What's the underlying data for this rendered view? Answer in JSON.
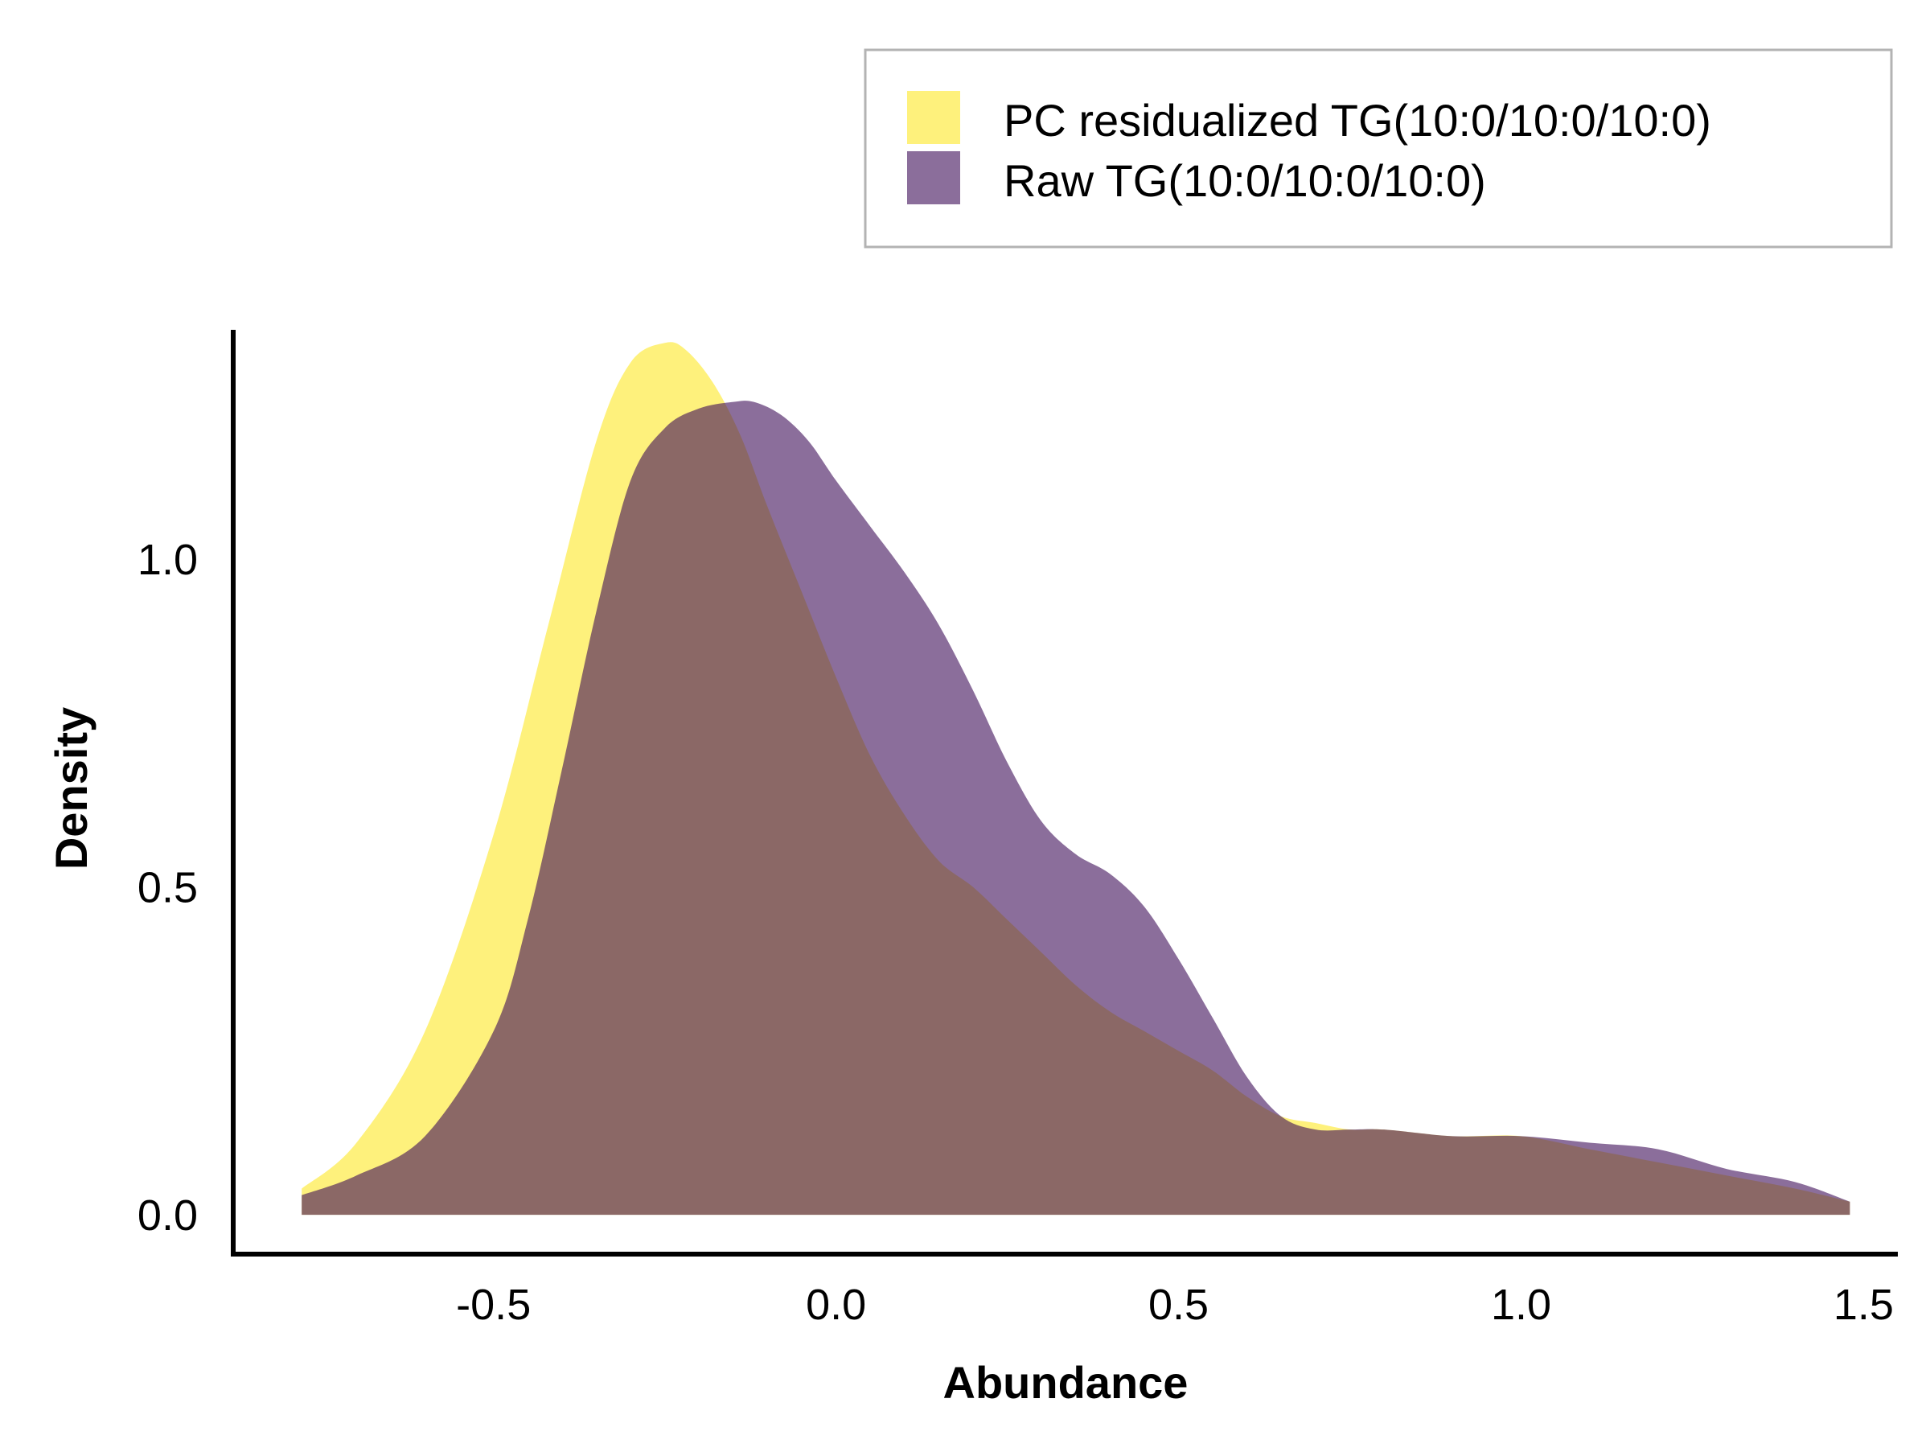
{
  "chart_data": {
    "type": "area",
    "xlabel": "Abundance",
    "ylabel": "Density",
    "xlim": [
      -0.88,
      1.55
    ],
    "ylim": [
      -0.06,
      1.35
    ],
    "xticks": [
      -0.5,
      0.0,
      0.5,
      1.0,
      1.5
    ],
    "xtick_labels": [
      "-0.5",
      "0.0",
      "0.5",
      "1.0",
      "1.5"
    ],
    "yticks": [
      0.0,
      0.5,
      1.0
    ],
    "ytick_labels": [
      "0.0",
      "0.5",
      "1.0"
    ],
    "grid": false,
    "legend_position": "top-right",
    "series": [
      {
        "name": "PC residualized TG(10:0/10:0/10:0)",
        "color": "#fde725",
        "opacity": 0.6,
        "x": [
          -0.78,
          -0.7,
          -0.6,
          -0.5,
          -0.42,
          -0.35,
          -0.3,
          -0.25,
          -0.22,
          -0.18,
          -0.14,
          -0.1,
          -0.05,
          0.0,
          0.05,
          0.1,
          0.15,
          0.2,
          0.25,
          0.3,
          0.35,
          0.4,
          0.45,
          0.5,
          0.55,
          0.6,
          0.65,
          0.7,
          0.75,
          0.8,
          0.9,
          1.0,
          1.1,
          1.2,
          1.3,
          1.4,
          1.48
        ],
        "y": [
          0.04,
          0.11,
          0.28,
          0.58,
          0.9,
          1.18,
          1.3,
          1.33,
          1.32,
          1.27,
          1.19,
          1.08,
          0.95,
          0.82,
          0.7,
          0.61,
          0.54,
          0.5,
          0.45,
          0.4,
          0.35,
          0.31,
          0.28,
          0.25,
          0.22,
          0.18,
          0.15,
          0.14,
          0.13,
          0.13,
          0.12,
          0.12,
          0.1,
          0.08,
          0.06,
          0.04,
          0.02
        ]
      },
      {
        "name": "Raw TG(10:0/10:0/10:0)",
        "color": "#3e0d59",
        "opacity": 0.6,
        "x": [
          -0.78,
          -0.7,
          -0.6,
          -0.5,
          -0.45,
          -0.4,
          -0.35,
          -0.3,
          -0.25,
          -0.2,
          -0.15,
          -0.12,
          -0.08,
          -0.04,
          0.0,
          0.05,
          0.1,
          0.15,
          0.2,
          0.25,
          0.3,
          0.35,
          0.4,
          0.45,
          0.5,
          0.55,
          0.6,
          0.65,
          0.7,
          0.75,
          0.8,
          0.9,
          1.0,
          1.1,
          1.2,
          1.3,
          1.4,
          1.48
        ],
        "y": [
          0.03,
          0.06,
          0.12,
          0.28,
          0.45,
          0.68,
          0.92,
          1.12,
          1.2,
          1.23,
          1.24,
          1.24,
          1.22,
          1.18,
          1.12,
          1.05,
          0.98,
          0.9,
          0.8,
          0.69,
          0.6,
          0.55,
          0.52,
          0.47,
          0.39,
          0.3,
          0.21,
          0.15,
          0.13,
          0.13,
          0.13,
          0.12,
          0.12,
          0.11,
          0.1,
          0.07,
          0.05,
          0.02
        ]
      }
    ]
  }
}
